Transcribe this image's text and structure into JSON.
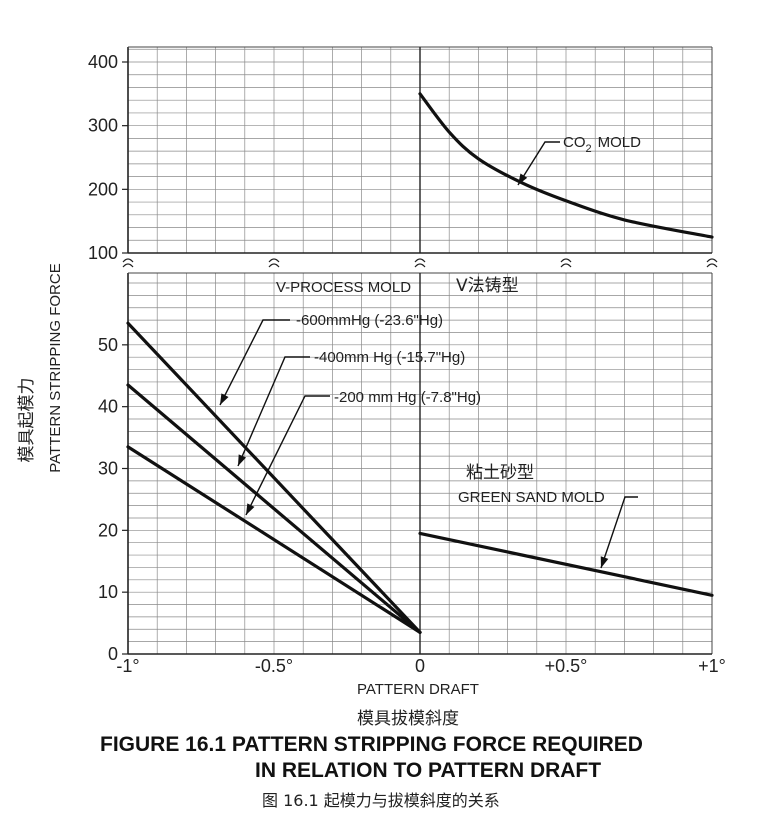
{
  "chart_data": {
    "type": "line",
    "xlabel": "PATTERN DRAFT",
    "xlabel_cn": "模具拔模斜度",
    "ylabel": "PATTERN STRIPPING FORCE",
    "ylabel_cn": "模具起模力",
    "xlim": [
      -1,
      1
    ],
    "x_ticks": [
      -1,
      -0.5,
      0,
      0.5,
      1
    ],
    "x_tick_labels": [
      "-1°",
      "-0.5°",
      "0",
      "+0.5°",
      "+1°"
    ],
    "upper_panel": {
      "ylim": [
        100,
        400
      ],
      "y_ticks": [
        100,
        200,
        300,
        400
      ]
    },
    "lower_panel": {
      "ylim": [
        0,
        60
      ],
      "y_ticks": [
        0,
        10,
        20,
        30,
        40,
        50
      ]
    },
    "grid": true,
    "series": [
      {
        "name": "CO2 MOLD",
        "panel": "upper",
        "x": [
          0,
          0.1,
          0.2,
          0.35,
          0.5,
          0.7,
          1.0
        ],
        "y": [
          350,
          290,
          248,
          210,
          182,
          152,
          125
        ]
      },
      {
        "name": "-600mmHg (-23.6\"Hg)",
        "panel": "lower",
        "x": [
          -1,
          0
        ],
        "y": [
          53.5,
          3.5
        ]
      },
      {
        "name": "-400mm Hg (-15.7\"Hg)",
        "panel": "lower",
        "x": [
          -1,
          0
        ],
        "y": [
          43.5,
          3.5
        ]
      },
      {
        "name": "-200 mm Hg (-7.8\"Hg)",
        "panel": "lower",
        "x": [
          -1,
          0
        ],
        "y": [
          33.5,
          3.5
        ]
      },
      {
        "name": "GREEN SAND MOLD",
        "panel": "lower",
        "x": [
          0,
          1
        ],
        "y": [
          19.5,
          9.5
        ]
      }
    ],
    "annotations": {
      "co2": "CO",
      "co2_sub": "2",
      "co2_rest": "MOLD",
      "vprocess": "V-PROCESS MOLD",
      "vprocess_cn": "V法铸型",
      "greensand_cn": "粘土砂型"
    },
    "caption": {
      "line1": "FIGURE 16.1  PATTERN STRIPPING FORCE REQUIRED",
      "line2": "IN RELATION TO PATTERN DRAFT",
      "cn": "图 16.1  起模力与拔模斜度的关系"
    }
  }
}
